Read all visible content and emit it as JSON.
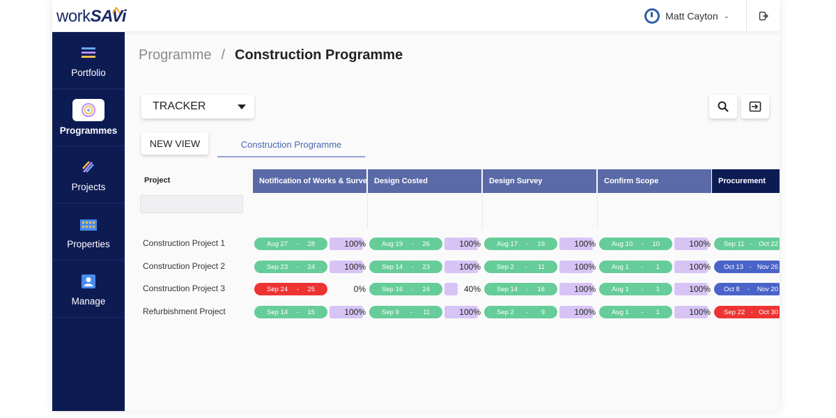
{
  "app": {
    "logo_part1": "work",
    "logo_part2": "SAVi"
  },
  "header": {
    "user_name": "Matt Cayton",
    "icons": [
      "power-icon",
      "chevron-down-icon",
      "logout-icon"
    ]
  },
  "sidebar": {
    "items": [
      {
        "label": "Portfolio",
        "icon": "portfolio-icon"
      },
      {
        "label": "Programmes",
        "icon": "programmes-icon",
        "active": true
      },
      {
        "label": "Projects",
        "icon": "projects-icon"
      },
      {
        "label": "Properties",
        "icon": "properties-icon"
      },
      {
        "label": "Manage",
        "icon": "manage-icon"
      }
    ]
  },
  "breadcrumb": {
    "parent": "Programme",
    "separator": "/",
    "current": "Construction Programme"
  },
  "toolbar": {
    "view_select": "TRACKER",
    "new_view_label": "NEW VIEW",
    "active_tab": "Construction Programme",
    "icons": [
      "search-icon",
      "export-icon"
    ]
  },
  "grid": {
    "project_header": "Project",
    "stages": [
      {
        "label": "Notification of Works & Survey",
        "color": "#5a6aa6"
      },
      {
        "label": "Design Costed",
        "color": "#5a6aa6"
      },
      {
        "label": "Design Survey",
        "color": "#5a6aa6"
      },
      {
        "label": "Confirm Scope",
        "color": "#5a6aa6"
      },
      {
        "label": "Procurement",
        "color": "#0d1b53"
      }
    ],
    "colors": {
      "green": "#66cc99",
      "red": "#ee3333",
      "blue": "#4a63c8",
      "pct_bar": "#d7c4f5"
    },
    "rows": [
      {
        "project": "Construction Project 1",
        "cells": [
          {
            "start": "Aug 27",
            "end": "28",
            "status": "green",
            "pct": "100%"
          },
          {
            "start": "Aug 19",
            "end": "26",
            "status": "green",
            "pct": "100%"
          },
          {
            "start": "Aug 17",
            "end": "19",
            "status": "green",
            "pct": "100%"
          },
          {
            "start": "Aug 10",
            "end": "10",
            "status": "green",
            "pct": "100%"
          },
          {
            "start": "Sep 11",
            "end": "Oct 22",
            "status": "green",
            "pct": ""
          }
        ]
      },
      {
        "project": "Construction Project 2",
        "cells": [
          {
            "start": "Sep 23",
            "end": "24",
            "status": "green",
            "pct": "100%"
          },
          {
            "start": "Sep 14",
            "end": "23",
            "status": "green",
            "pct": "100%"
          },
          {
            "start": "Sep 2",
            "end": "11",
            "status": "green",
            "pct": "100%"
          },
          {
            "start": "Aug 1",
            "end": "1",
            "status": "green",
            "pct": "100%"
          },
          {
            "start": "Oct 13",
            "end": "Nov 26",
            "status": "blue",
            "pct": ""
          }
        ]
      },
      {
        "project": "Construction Project 3",
        "cells": [
          {
            "start": "Sep 24",
            "end": "25",
            "status": "red",
            "pct": "0%"
          },
          {
            "start": "Sep 16",
            "end": "24",
            "status": "green",
            "pct": "40%"
          },
          {
            "start": "Sep 14",
            "end": "16",
            "status": "green",
            "pct": "100%"
          },
          {
            "start": "Aug 1",
            "end": "1",
            "status": "green",
            "pct": "100%"
          },
          {
            "start": "Oct 8",
            "end": "Nov 20",
            "status": "blue",
            "pct": ""
          }
        ]
      },
      {
        "project": "Refurbishment Project",
        "cells": [
          {
            "start": "Sep 14",
            "end": "15",
            "status": "green",
            "pct": "100%"
          },
          {
            "start": "Sep 9",
            "end": "11",
            "status": "green",
            "pct": "100%"
          },
          {
            "start": "Sep 2",
            "end": "9",
            "status": "green",
            "pct": "100%"
          },
          {
            "start": "Aug 1",
            "end": "1",
            "status": "green",
            "pct": "100%"
          },
          {
            "start": "Sep 22",
            "end": "Oct 30",
            "status": "red",
            "pct": ""
          }
        ]
      }
    ]
  }
}
